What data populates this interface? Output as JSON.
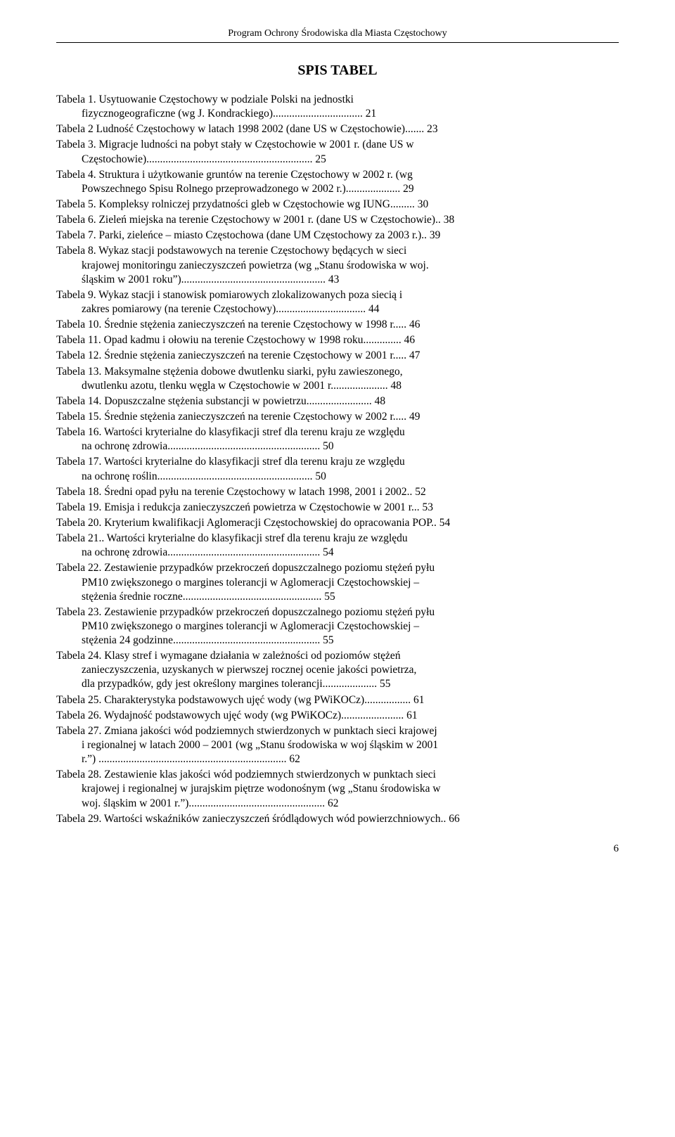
{
  "header": "Program Ochrony Środowiska dla Miasta Częstochowy",
  "title": "SPIS TABEL",
  "entries": [
    {
      "text": "Tabela 1. Usytuowanie Częstochowy w podziale Polski na jednostki fizycznogeograficzne (wg J. Kondrackiego)",
      "page": "21"
    },
    {
      "text": "Tabela 2 Ludność Częstochowy w latach 1998 2002 (dane US w Częstochowie)",
      "page": "23"
    },
    {
      "text": "Tabela 3. Migracje ludności na pobyt stały w Częstochowie w 2001 r. (dane US w Częstochowie)",
      "page": "25"
    },
    {
      "text": "Tabela 4. Struktura i użytkowanie gruntów na terenie Częstochowy w 2002 r. (wg Powszechnego Spisu Rolnego przeprowadzonego w 2002 r.)",
      "page": "29"
    },
    {
      "text": "Tabela 5. Kompleksy rolniczej przydatności gleb w Częstochowie wg IUNG",
      "page": "30"
    },
    {
      "text": "Tabela 6. Zieleń miejska na terenie Częstochowy w 2001 r. (dane US w Częstochowie)",
      "page": "38"
    },
    {
      "text": "Tabela 7. Parki, zieleńce – miasto Częstochowa (dane UM Częstochowy za 2003 r.)",
      "page": "39"
    },
    {
      "text": "Tabela 8. Wykaz stacji podstawowych na terenie Częstochowy będących w sieci krajowej monitoringu zanieczyszczeń powietrza (wg „Stanu środowiska w woj. śląskim w 2001 roku”)",
      "page": "43"
    },
    {
      "text": "Tabela 9. Wykaz stacji i stanowisk pomiarowych zlokalizowanych poza siecią i zakres pomiarowy  (na terenie Częstochowy)",
      "page": "44"
    },
    {
      "text": "Tabela 10. Średnie stężenia zanieczyszczeń na terenie Częstochowy w 1998 r",
      "page": "46"
    },
    {
      "text": "Tabela 11. Opad kadmu i ołowiu na terenie Częstochowy w 1998 roku",
      "page": "46"
    },
    {
      "text": "Tabela 12. Średnie stężenia zanieczyszczeń na terenie Częstochowy w 2001 r.",
      "page": "47"
    },
    {
      "text": "Tabela 13. Maksymalne stężenia dobowe dwutlenku siarki, pyłu zawieszonego, dwutlenku azotu, tlenku węgla w Częstochowie w 2001 r.",
      "page": "48"
    },
    {
      "text": "Tabela 14. Dopuszczalne stężenia substancji w powietrzu",
      "page": "48"
    },
    {
      "text": "Tabela 15. Średnie stężenia zanieczyszczeń na terenie Częstochowy w 2002 r.",
      "page": "49"
    },
    {
      "text": "Tabela 16. Wartości kryterialne do klasyfikacji stref dla terenu kraju ze względu na ochronę zdrowia",
      "page": "50"
    },
    {
      "text": "Tabela 17. Wartości kryterialne do klasyfikacji stref dla terenu kraju ze względu na ochronę roślin",
      "page": "50"
    },
    {
      "text": "Tabela 18. Średni opad pyłu na terenie Częstochowy w latach 1998, 2001 i 2002",
      "page": "52"
    },
    {
      "text": "Tabela 19. Emisja i redukcja zanieczyszczeń powietrza w Częstochowie w 2001 r.",
      "page": "53"
    },
    {
      "text": "Tabela 20. Kryterium kwalifikacji Aglomeracji Częstochowskiej do opracowania POP",
      "page": "54"
    },
    {
      "text": "Tabela 21.. Wartości kryterialne do klasyfikacji stref dla terenu kraju ze względu na ochronę zdrowia",
      "page": "54"
    },
    {
      "text": "Tabela 22. Zestawienie przypadków przekroczeń dopuszczalnego poziomu stężeń pyłu PM10 zwiększonego o margines tolerancji w Aglomeracji Częstochowskiej – stężenia średnie roczne",
      "page": "55"
    },
    {
      "text": "Tabela 23. Zestawienie przypadków przekroczeń dopuszczalnego poziomu stężeń pyłu PM10 zwiększonego o margines tolerancji w Aglomeracji Częstochowskiej – stężenia 24 godzinne",
      "page": "55"
    },
    {
      "text": "Tabela 24. Klasy stref i wymagane działania w zależności od poziomów stężeń zanieczyszczenia, uzyskanych w pierwszej rocznej ocenie jakości powietrza, dla przypadków, gdy jest określony margines tolerancji",
      "page": "55"
    },
    {
      "text": "Tabela 25. Charakterystyka podstawowych ujęć wody (wg PWiKOCz)",
      "page": "61"
    },
    {
      "text": "Tabela 26. Wydajność podstawowych ujęć wody (wg PWiKOCz)",
      "page": "61"
    },
    {
      "text": "Tabela 27. Zmiana jakości wód podziemnych stwierdzonych w punktach sieci krajowej i regionalnej  w latach 2000 – 2001 (wg „Stanu środowiska w woj śląskim w 2001 r.”) .",
      "page": "62"
    },
    {
      "text": "Tabela 28. Zestawienie klas jakości wód podziemnych stwierdzonych w punktach sieci krajowej  i regionalnej w jurajskim piętrze wodonośnym (wg „Stanu środowiska w woj. śląskim w 2001 r.”)",
      "page": "62"
    },
    {
      "text": "Tabela 29. Wartości wskaźników zanieczyszczeń śródlądowych wód powierzchniowych",
      "page": "66"
    }
  ],
  "footer": "6",
  "layout": {
    "lineWidthCh": 82,
    "continuationIndentPx": 36
  }
}
